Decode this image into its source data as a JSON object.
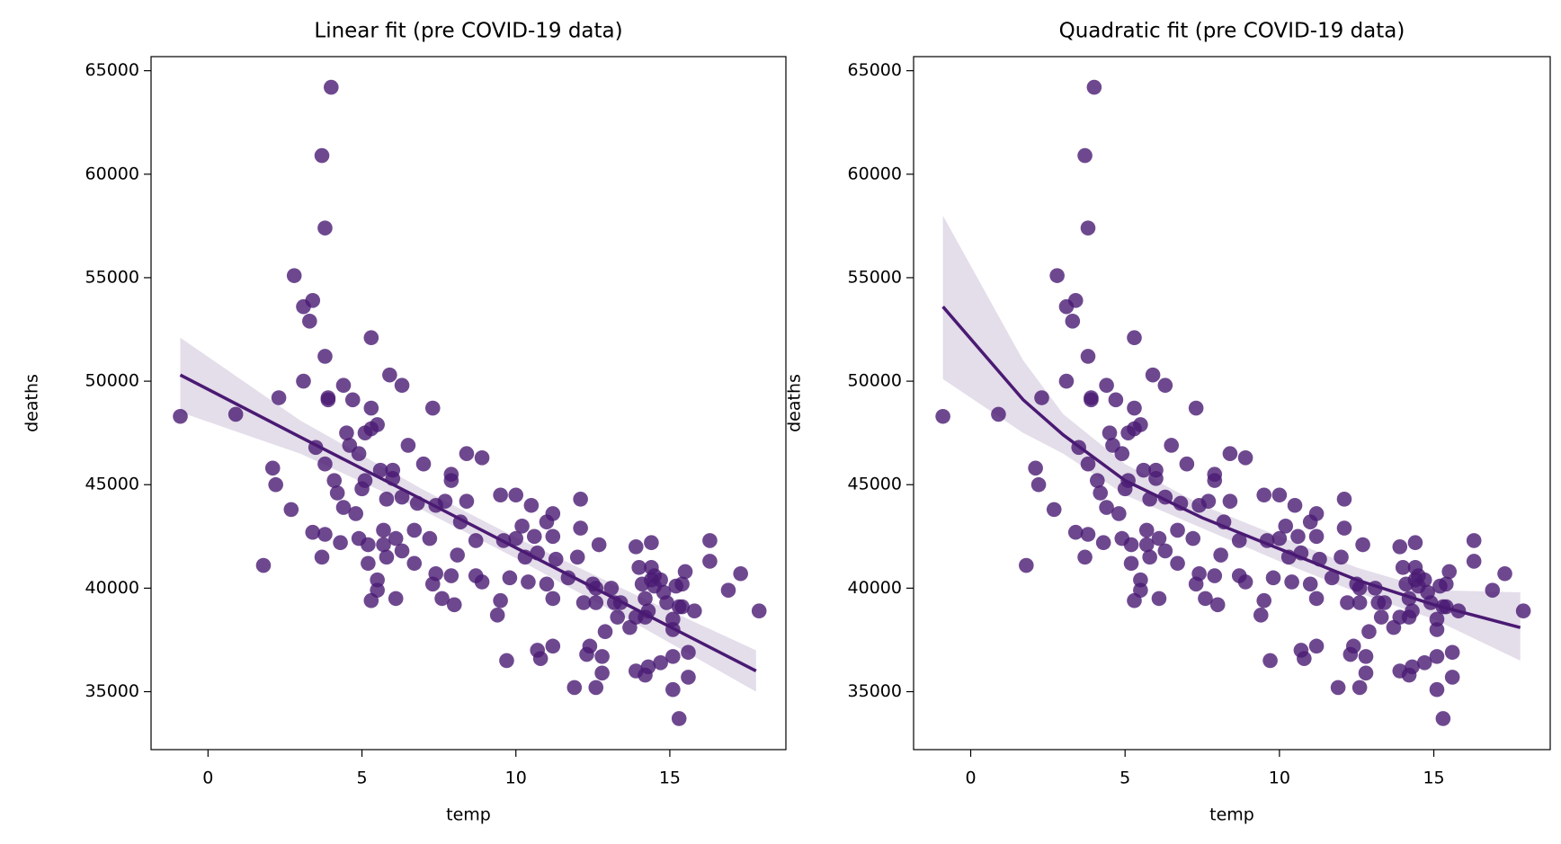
{
  "chart_data": [
    {
      "type": "scatter",
      "title": "Linear fit (pre COVID-19 data)",
      "xlabel": "temp",
      "ylabel": "deaths",
      "color": "#4a1a73",
      "x": [
        -0.9,
        0.9,
        1.8,
        2.1,
        2.2,
        2.3,
        2.7,
        2.8,
        3.1,
        3.1,
        3.3,
        3.4,
        3.4,
        3.5,
        3.7,
        3.7,
        3.8,
        3.8,
        3.8,
        3.8,
        3.9,
        3.9,
        4.0,
        4.1,
        4.2,
        4.3,
        4.4,
        4.4,
        4.5,
        4.6,
        4.7,
        4.8,
        4.9,
        4.9,
        5.0,
        5.1,
        5.1,
        5.2,
        5.2,
        5.3,
        5.3,
        5.3,
        5.3,
        5.5,
        5.5,
        5.5,
        5.6,
        5.7,
        5.7,
        5.8,
        5.8,
        5.9,
        6.0,
        6.0,
        6.1,
        6.1,
        6.3,
        6.3,
        6.3,
        6.5,
        6.7,
        6.7,
        6.8,
        7.0,
        7.2,
        7.3,
        7.4,
        7.3,
        7.4,
        7.6,
        7.7,
        7.9,
        7.9,
        7.9,
        8.0,
        8.1,
        8.2,
        8.4,
        8.4,
        8.7,
        8.7,
        8.9,
        8.9,
        9.4,
        9.5,
        9.5,
        9.6,
        9.7,
        9.8,
        10.0,
        10.0,
        10.2,
        10.3,
        10.4,
        10.5,
        10.6,
        10.7,
        10.7,
        10.8,
        11.0,
        11.0,
        11.2,
        11.2,
        11.2,
        11.2,
        11.3,
        11.7,
        11.9,
        12.0,
        12.1,
        12.1,
        12.2,
        12.3,
        12.4,
        12.5,
        12.6,
        12.6,
        12.6,
        12.7,
        12.8,
        12.8,
        12.9,
        13.1,
        13.2,
        13.3,
        13.4,
        13.7,
        13.9,
        13.9,
        13.9,
        14.0,
        14.1,
        14.2,
        14.2,
        14.2,
        14.3,
        14.3,
        14.4,
        14.4,
        14.4,
        14.5,
        14.5,
        14.7,
        14.7,
        14.8,
        14.9,
        15.1,
        15.1,
        15.1,
        15.1,
        15.2,
        15.3,
        15.3,
        15.4,
        15.4,
        15.5,
        15.6,
        15.6,
        15.8,
        16.3,
        16.3,
        16.9,
        17.3,
        17.9
      ],
      "y": [
        48300,
        48400,
        41100,
        45800,
        45000,
        49200,
        43800,
        55100,
        53600,
        50000,
        52900,
        53900,
        42700,
        46800,
        41500,
        60900,
        57400,
        46000,
        42600,
        51200,
        49100,
        49200,
        64200,
        45200,
        44600,
        42200,
        49800,
        43900,
        47500,
        46900,
        49100,
        43600,
        46500,
        42400,
        44800,
        45200,
        47500,
        42100,
        41200,
        47700,
        48700,
        52100,
        39400,
        47900,
        40400,
        39900,
        45700,
        42800,
        42100,
        44300,
        41500,
        50300,
        45700,
        45300,
        42400,
        39500,
        41800,
        44400,
        49800,
        46900,
        42800,
        41200,
        44100,
        46000,
        42400,
        48700,
        44000,
        40200,
        40700,
        39500,
        44200,
        40600,
        45500,
        45200,
        39200,
        41600,
        43200,
        44200,
        46500,
        42300,
        40600,
        46300,
        40300,
        38700,
        39400,
        44500,
        42300,
        36500,
        40500,
        44500,
        42400,
        43000,
        41500,
        40300,
        44000,
        42500,
        41700,
        37000,
        36600,
        40200,
        43200,
        37200,
        43600,
        42500,
        39500,
        41400,
        40500,
        35200,
        41500,
        42900,
        44300,
        39300,
        36800,
        37200,
        40200,
        39300,
        35200,
        40000,
        42100,
        36700,
        35900,
        37900,
        40000,
        39300,
        38600,
        39300,
        38100,
        36000,
        42000,
        38600,
        41000,
        40200,
        35800,
        38600,
        39500,
        38900,
        36200,
        40400,
        42200,
        41000,
        40600,
        40100,
        40400,
        36400,
        39800,
        39300,
        38500,
        38000,
        35100,
        36700,
        40100,
        33700,
        39100,
        39100,
        40200,
        40800,
        35700,
        36900,
        38900,
        41300,
        42300,
        39900,
        40700,
        38900
      ],
      "fit": {
        "x": [
          -0.9,
          3,
          7,
          10,
          14,
          17.8
        ],
        "y": [
          50300,
          47300,
          44250,
          41950,
          38900,
          36000
        ],
        "lower": [
          48500,
          46500,
          43750,
          41450,
          38200,
          35000
        ],
        "upper": [
          52100,
          48100,
          44750,
          42450,
          39600,
          37000
        ]
      },
      "xlim": [
        -1.85,
        18.77
      ],
      "ylim": [
        32200,
        65680
      ],
      "xticks": [
        0,
        5,
        10,
        15
      ],
      "yticks": [
        35000,
        40000,
        45000,
        50000,
        55000,
        60000,
        65000
      ]
    },
    {
      "type": "scatter",
      "title": "Quadratic fit (pre COVID-19 data)",
      "xlabel": "temp",
      "ylabel": "deaths",
      "color": "#4a1a73",
      "x": [
        -0.9,
        0.9,
        1.8,
        2.1,
        2.2,
        2.3,
        2.7,
        2.8,
        3.1,
        3.1,
        3.3,
        3.4,
        3.4,
        3.5,
        3.7,
        3.7,
        3.8,
        3.8,
        3.8,
        3.8,
        3.9,
        3.9,
        4.0,
        4.1,
        4.2,
        4.3,
        4.4,
        4.4,
        4.5,
        4.6,
        4.7,
        4.8,
        4.9,
        4.9,
        5.0,
        5.1,
        5.1,
        5.2,
        5.2,
        5.3,
        5.3,
        5.3,
        5.3,
        5.5,
        5.5,
        5.5,
        5.6,
        5.7,
        5.7,
        5.8,
        5.8,
        5.9,
        6.0,
        6.0,
        6.1,
        6.1,
        6.3,
        6.3,
        6.3,
        6.5,
        6.7,
        6.7,
        6.8,
        7.0,
        7.2,
        7.3,
        7.4,
        7.3,
        7.4,
        7.6,
        7.7,
        7.9,
        7.9,
        7.9,
        8.0,
        8.1,
        8.2,
        8.4,
        8.4,
        8.7,
        8.7,
        8.9,
        8.9,
        9.4,
        9.5,
        9.5,
        9.6,
        9.7,
        9.8,
        10.0,
        10.0,
        10.2,
        10.3,
        10.4,
        10.5,
        10.6,
        10.7,
        10.7,
        10.8,
        11.0,
        11.0,
        11.2,
        11.2,
        11.2,
        11.2,
        11.3,
        11.7,
        11.9,
        12.0,
        12.1,
        12.1,
        12.2,
        12.3,
        12.4,
        12.5,
        12.6,
        12.6,
        12.6,
        12.7,
        12.8,
        12.8,
        12.9,
        13.1,
        13.2,
        13.3,
        13.4,
        13.7,
        13.9,
        13.9,
        13.9,
        14.0,
        14.1,
        14.2,
        14.2,
        14.2,
        14.3,
        14.3,
        14.4,
        14.4,
        14.4,
        14.5,
        14.5,
        14.7,
        14.7,
        14.8,
        14.9,
        15.1,
        15.1,
        15.1,
        15.1,
        15.2,
        15.3,
        15.3,
        15.4,
        15.4,
        15.5,
        15.6,
        15.6,
        15.8,
        16.3,
        16.3,
        16.9,
        17.3,
        17.9
      ],
      "y": [
        48300,
        48400,
        41100,
        45800,
        45000,
        49200,
        43800,
        55100,
        53600,
        50000,
        52900,
        53900,
        42700,
        46800,
        41500,
        60900,
        57400,
        46000,
        42600,
        51200,
        49100,
        49200,
        64200,
        45200,
        44600,
        42200,
        49800,
        43900,
        47500,
        46900,
        49100,
        43600,
        46500,
        42400,
        44800,
        45200,
        47500,
        42100,
        41200,
        47700,
        48700,
        52100,
        39400,
        47900,
        40400,
        39900,
        45700,
        42800,
        42100,
        44300,
        41500,
        50300,
        45700,
        45300,
        42400,
        39500,
        41800,
        44400,
        49800,
        46900,
        42800,
        41200,
        44100,
        46000,
        42400,
        48700,
        44000,
        40200,
        40700,
        39500,
        44200,
        40600,
        45500,
        45200,
        39200,
        41600,
        43200,
        44200,
        46500,
        42300,
        40600,
        46300,
        40300,
        38700,
        39400,
        44500,
        42300,
        36500,
        40500,
        44500,
        42400,
        43000,
        41500,
        40300,
        44000,
        42500,
        41700,
        37000,
        36600,
        40200,
        43200,
        37200,
        43600,
        42500,
        39500,
        41400,
        40500,
        35200,
        41500,
        42900,
        44300,
        39300,
        36800,
        37200,
        40200,
        39300,
        35200,
        40000,
        42100,
        36700,
        35900,
        37900,
        40000,
        39300,
        38600,
        39300,
        38100,
        36000,
        42000,
        38600,
        41000,
        40200,
        35800,
        38600,
        39500,
        38900,
        36200,
        40400,
        42200,
        41000,
        40600,
        40100,
        40400,
        36400,
        39800,
        39300,
        38500,
        38000,
        35100,
        36700,
        40100,
        33700,
        39100,
        39100,
        40200,
        40800,
        35700,
        36900,
        38900,
        41300,
        42300,
        39900,
        40700,
        38900
      ],
      "fit": {
        "x": [
          -0.9,
          1.7,
          3,
          5,
          7.5,
          10,
          12.5,
          15,
          17.8
        ],
        "y": [
          53600,
          49100,
          47400,
          45200,
          43400,
          41900,
          40400,
          39200,
          38100
        ],
        "lower": [
          50100,
          47500,
          46500,
          44500,
          42900,
          41300,
          39800,
          38500,
          36500
        ],
        "upper": [
          58000,
          51000,
          48400,
          46000,
          44000,
          42500,
          41000,
          39900,
          39800
        ]
      },
      "xlim": [
        -1.85,
        18.77
      ],
      "ylim": [
        32200,
        65680
      ],
      "xticks": [
        0,
        5,
        10,
        15
      ],
      "yticks": [
        35000,
        40000,
        45000,
        50000,
        55000,
        60000,
        65000
      ]
    }
  ]
}
